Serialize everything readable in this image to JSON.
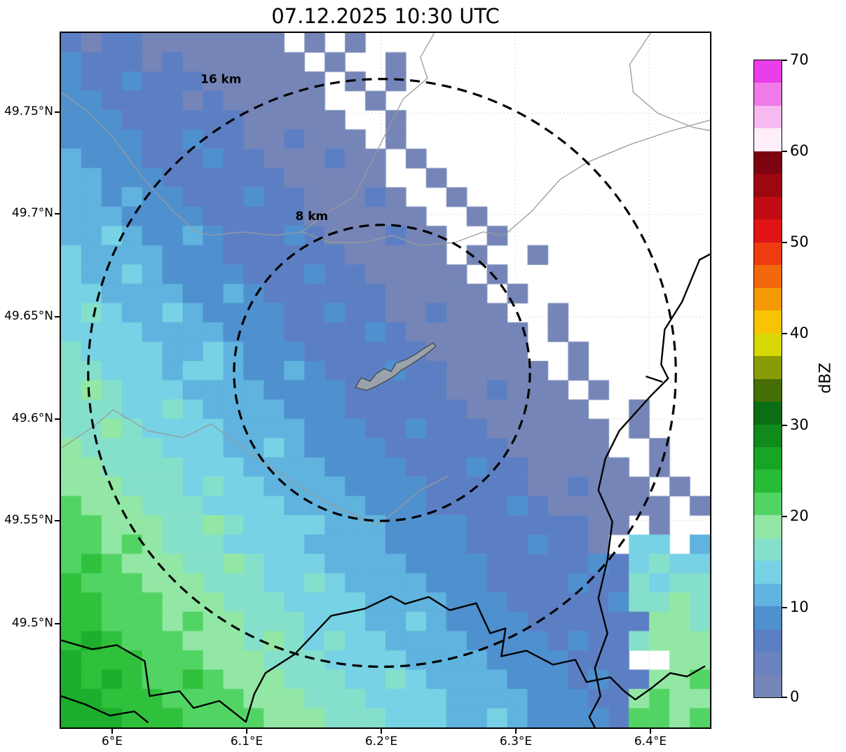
{
  "title": "07.12.2025 10:30 UTC",
  "axes": {
    "y_ticks": [
      "49.75°N",
      "49.7°N",
      "49.65°N",
      "49.6°N",
      "49.55°N",
      "49.5°N"
    ],
    "x_ticks": [
      "6°E",
      "6.1°E",
      "6.2°E",
      "6.3°E",
      "6.4°E"
    ]
  },
  "colorbar": {
    "label": "dBZ",
    "ticks": [
      "70",
      "60",
      "50",
      "40",
      "30",
      "20",
      "10",
      "0"
    ],
    "colors_top_to_bottom": [
      "#e93ee9",
      "#f07ae8",
      "#f7b9f0",
      "#fdeefa",
      "#7d0310",
      "#9c0712",
      "#c30b14",
      "#e01317",
      "#ef3b10",
      "#f2690c",
      "#f59a06",
      "#f7c302",
      "#d8d806",
      "#8a9c04",
      "#456e05",
      "#0c6e14",
      "#108a1a",
      "#16a524",
      "#27bc35",
      "#52d465",
      "#93e7a4",
      "#85e0cb",
      "#76d2e4",
      "#5fb3de",
      "#4f90cf",
      "#5c7fc4",
      "#6a82bd",
      "#7585b7"
    ]
  },
  "range_rings": [
    {
      "label": "16 km",
      "radius_km": 16
    },
    {
      "label": "8 km",
      "radius_km": 8
    }
  ],
  "chart_data": {
    "type": "heatmap",
    "title": "07.12.2025 10:30 UTC",
    "units": "dBZ",
    "colorbar_range": [
      0,
      70
    ],
    "lon_ticks_deg_e": [
      6.0,
      6.1,
      6.2,
      6.3,
      6.4
    ],
    "lat_ticks_deg_n": [
      49.75,
      49.7,
      49.65,
      49.6,
      49.55,
      49.5
    ],
    "lon_range": [
      5.96,
      6.45
    ],
    "lat_range": [
      49.46,
      49.78
    ],
    "range_ring_radii_km": [
      8,
      16
    ],
    "legend_position": "right-colorbar",
    "grid_on": true,
    "level_char_to_dbz": {
      "a": "0-5",
      "b": "5-7.5",
      "c": "7.5-10",
      "d": "10-12.5",
      "e": "12.5-15",
      "f": "15-17.5",
      "g": "17.5-20",
      "h": "20-22.5",
      "i": "22.5-25",
      "j": "25-27.5",
      ".": "no echo"
    },
    "palette": {
      "a": "#7585b7",
      "b": "#5c7fc4",
      "c": "#4f90cf",
      "d": "#5fb3de",
      "e": "#76d2e4",
      "f": "#85e0cb",
      "g": "#93e7a4",
      "h": "#52d465",
      "i": "#30c13c",
      "j": "#1cae2c"
    },
    "grid": {
      "cols": 32,
      "rows": 36,
      "no_data_char": ".",
      "rows_top_to_bottom": [
        "babbaaaaaaa.a.a.................",
        "cbbbabaaaaaa.a..a...............",
        "cbbcbbbaaaaaa.a.a...............",
        "ccbbbbabaaaaa..a................",
        "cccbbbbbbaaaaa..a...............",
        "ccccbbcbbaabaaa.a...............",
        "dcccbbbcbbaaabaa.a..............",
        "ddcccbbbbbbaaaaa..a.............",
        "ddcdccbbbcbbaaaba..a............",
        "dddccccbbbbbaaaaaa..a...........",
        "ddedccdcbbbcbaaabaa..a..........",
        "eddddcccbbbbbbaaaaa.a..a........",
        "eddedccccbbbcbbaaaaa.a..........",
        "eeddddccdcbbbbbbaaaaa.a.........",
        "efeddedccccbbcbbaabaaa..a.......",
        "eeeeddddcccbbbbcbaaaaaa.a.......",
        "feeeeddedcccbbbbbbaaaaa..a......",
        "ffeeedeedccdcbbbcbbaaaaa.a......",
        "fgfeeeddddccccbbbbbaabaaa.a.....",
        "fffeefeddddcccbbbbbbaaaaaa..a...",
        "ffgfeeeeddddcccbbcbbbaaaaaa.a...",
        "gffffeeeddedccccbbbbbbaaaaa..a..",
        "ggffffeeeddddccccbbbcbbaaaaa.a..",
        "gggfffefeeddddccccbbbbbaabaaa.a.",
        "hgggfffeeeeddddcccbbbbcbaaaaaa.a",
        "hhgggffgfeeeedddccccbbbbbbaa.a..",
        "hhghgfffeeeeddddccccbbbcbba.ee.d",
        "hihgggffgfeeeddddccccbbbbbcbefee",
        "ihhhgggfffeefeddddcccbbbbcbbfeff",
        "iihhhgggfffeeeeddddcccbbbbbcffgf",
        "iihhhghggfffeeeddedccccbbbbbbggf",
        "ijihhhgggfgfefeeddddccccbcbbfggg",
        "jiiihhhgggfffeeeeddddccccbbb..gg",
        "jijihhihgggfffeefeddddcccbcbbggh",
        "jjiiihhhhgggfffeeeeddddcccbbghgg",
        "jjjiiihhhhgggfffeeeddedccccbhhgh"
      ]
    }
  }
}
